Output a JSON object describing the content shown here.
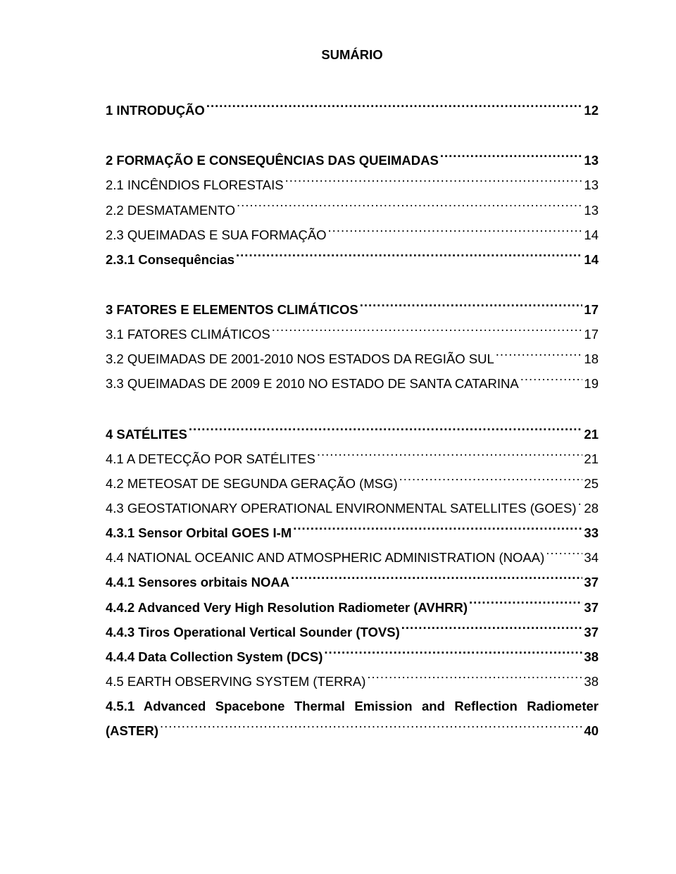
{
  "title": "SUMÁRIO",
  "entries": [
    {
      "label": "1 INTRODUÇÃO",
      "page": "12",
      "bold": true,
      "gap_after": "lg"
    },
    {
      "label": "2 FORMAÇÃO E CONSEQUÊNCIAS DAS QUEIMADAS",
      "page": "13",
      "bold": true
    },
    {
      "label": "2.1 INCÊNDIOS FLORESTAIS",
      "page": "13",
      "bold": false
    },
    {
      "label": "2.2 DESMATAMENTO",
      "page": "13",
      "bold": false
    },
    {
      "label": "2.3 QUEIMADAS E SUA FORMAÇÃO",
      "page": "14",
      "bold": false
    },
    {
      "label": "2.3.1 Consequências",
      "page": "14",
      "bold": true,
      "gap_after": "lg"
    },
    {
      "label": "3 FATORES E ELEMENTOS CLIMÁTICOS",
      "page": "17",
      "bold": true
    },
    {
      "label": "3.1 FATORES CLIMÁTICOS",
      "page": "17",
      "bold": false
    },
    {
      "label": "3.2 QUEIMADAS DE 2001-2010 NOS ESTADOS DA REGIÃO SUL",
      "page": "18",
      "bold": false
    },
    {
      "label": "3.3 QUEIMADAS DE 2009 E 2010 NO ESTADO DE SANTA CATARINA",
      "page": "19",
      "bold": false,
      "gap_after": "lg"
    },
    {
      "label": "4 SATÉLITES",
      "page": "21",
      "bold": true
    },
    {
      "label": "4.1 A DETECÇÃO POR SATÉLITES",
      "page": "21",
      "bold": false
    },
    {
      "label": "4.2 METEOSAT DE SEGUNDA GERAÇÃO (MSG)",
      "page": "25",
      "bold": false
    },
    {
      "label": "4.3 GEOSTATIONARY OPERATIONAL ENVIRONMENTAL SATELLITES (GOES)",
      "page": "28",
      "bold": false
    },
    {
      "label": "4.3.1 Sensor Orbital GOES I-M",
      "page": "33",
      "bold": true
    },
    {
      "label": "4.4 NATIONAL OCEANIC AND ATMOSPHERIC ADMINISTRATION (NOAA)",
      "page": "34",
      "bold": false
    },
    {
      "label": "4.4.1 Sensores orbitais NOAA",
      "page": "37",
      "bold": true
    },
    {
      "label": "4.4.2 Advanced Very High Resolution Radiometer (AVHRR)",
      "page": "37",
      "bold": true
    },
    {
      "label": "4.4.3 Tiros Operational Vertical Sounder (TOVS)",
      "page": "37",
      "bold": true
    },
    {
      "label": "4.4.4 Data Collection System (DCS)",
      "page": "38",
      "bold": true
    },
    {
      "label": "4.5 EARTH OBSERVING SYSTEM (TERRA)",
      "page": "38",
      "bold": false
    }
  ],
  "multi_entry": {
    "line1": "4.5.1  Advanced  Spacebone  Thermal  Emission  and  Reflection  Radiometer",
    "line2_label": "(ASTER)",
    "page": "40",
    "bold": true
  },
  "colors": {
    "text": "#000000",
    "background": "#ffffff"
  },
  "typography": {
    "font_family": "Arial",
    "font_size_pt": 14,
    "title_weight": "bold",
    "line_height": 1.9
  }
}
